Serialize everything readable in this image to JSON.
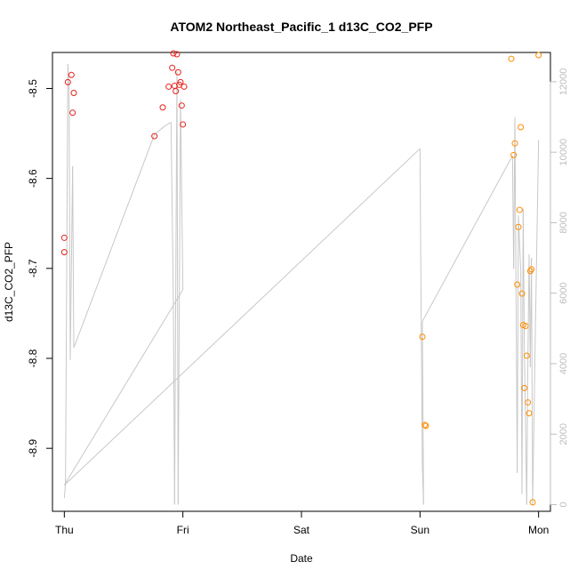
{
  "chart_data": {
    "type": "scatter",
    "title": "ATOM2 Northeast_Pacific_1 d13C_CO2_PFP",
    "xlabel": "Date",
    "ylabel": "d13C_CO2_PFP",
    "x_ticks": [
      "Thu",
      "Fri",
      "Sat",
      "Sun",
      "Mon"
    ],
    "xlim": [
      -0.1,
      4.1
    ],
    "ylim": [
      -8.97,
      -8.46
    ],
    "y_ticks": [
      -8.5,
      -8.6,
      -8.7,
      -8.8,
      -8.9
    ],
    "y2_ticks": [
      0,
      2000,
      4000,
      6000,
      8000,
      10000,
      12000
    ],
    "y2lim": [
      -190,
      12830
    ],
    "axis_color_right": "#bdbdbd",
    "grid": false,
    "series": [
      {
        "color": "#e8211c",
        "points": [
          [
            0.0,
            -8.666
          ],
          [
            0.0,
            -8.682
          ],
          [
            0.03,
            -8.493
          ],
          [
            0.06,
            -8.485
          ],
          [
            0.07,
            -8.527
          ],
          [
            0.08,
            -8.505
          ],
          [
            0.76,
            -8.553
          ],
          [
            0.83,
            -8.521
          ],
          [
            0.88,
            -8.498
          ],
          [
            0.91,
            -8.477
          ],
          [
            0.92,
            -8.461
          ],
          [
            0.93,
            -8.497
          ],
          [
            0.94,
            -8.503
          ],
          [
            0.95,
            -8.462
          ],
          [
            0.96,
            -8.482
          ],
          [
            0.97,
            -8.496
          ],
          [
            0.98,
            -8.493
          ],
          [
            0.99,
            -8.519
          ],
          [
            1.0,
            -8.54
          ],
          [
            1.01,
            -8.498
          ]
        ]
      },
      {
        "color": "#ff8c00",
        "points": [
          [
            3.02,
            -8.776
          ],
          [
            3.04,
            -8.874
          ],
          [
            3.05,
            -8.875
          ],
          [
            3.77,
            -8.467
          ],
          [
            3.79,
            -8.574
          ],
          [
            3.8,
            -8.561
          ],
          [
            3.82,
            -8.718
          ],
          [
            3.83,
            -8.654
          ],
          [
            3.84,
            -8.635
          ],
          [
            3.85,
            -8.543
          ],
          [
            3.86,
            -8.728
          ],
          [
            3.87,
            -8.763
          ],
          [
            3.88,
            -8.833
          ],
          [
            3.89,
            -8.764
          ],
          [
            3.9,
            -8.797
          ],
          [
            3.91,
            -8.849
          ],
          [
            3.92,
            -8.861
          ],
          [
            3.93,
            -8.703
          ],
          [
            3.94,
            -8.701
          ],
          [
            3.95,
            -8.96
          ],
          [
            4.0,
            -8.463
          ]
        ]
      }
    ],
    "line_series": {
      "color": "#c8c8c8",
      "points": [
        [
          0.0,
          180
        ],
        [
          0.01,
          600
        ],
        [
          0.03,
          12500
        ],
        [
          0.04,
          11700
        ],
        [
          0.05,
          4100
        ],
        [
          0.07,
          9600
        ],
        [
          0.08,
          4450
        ],
        [
          0.76,
          10500
        ],
        [
          0.85,
          10750
        ],
        [
          0.9,
          10850
        ],
        [
          0.92,
          5700
        ],
        [
          0.93,
          0
        ],
        [
          0.95,
          12300
        ],
        [
          0.96,
          0
        ],
        [
          0.98,
          11500
        ],
        [
          1.0,
          6100
        ],
        [
          0.0,
          550
        ],
        [
          3.0,
          10100
        ],
        [
          3.01,
          5200
        ],
        [
          3.02,
          1100
        ],
        [
          3.03,
          0
        ],
        [
          3.02,
          5200
        ],
        [
          3.78,
          9900
        ],
        [
          3.79,
          6700
        ],
        [
          3.8,
          11000
        ],
        [
          3.82,
          900
        ],
        [
          3.83,
          8200
        ],
        [
          3.85,
          6600
        ],
        [
          3.86,
          300
        ],
        [
          3.87,
          8400
        ],
        [
          3.88,
          4500
        ],
        [
          3.9,
          0
        ],
        [
          3.91,
          4150
        ],
        [
          3.92,
          7100
        ],
        [
          3.93,
          3900
        ],
        [
          3.94,
          7000
        ],
        [
          3.95,
          0
        ],
        [
          3.97,
          4350
        ],
        [
          4.0,
          10350
        ]
      ]
    }
  }
}
